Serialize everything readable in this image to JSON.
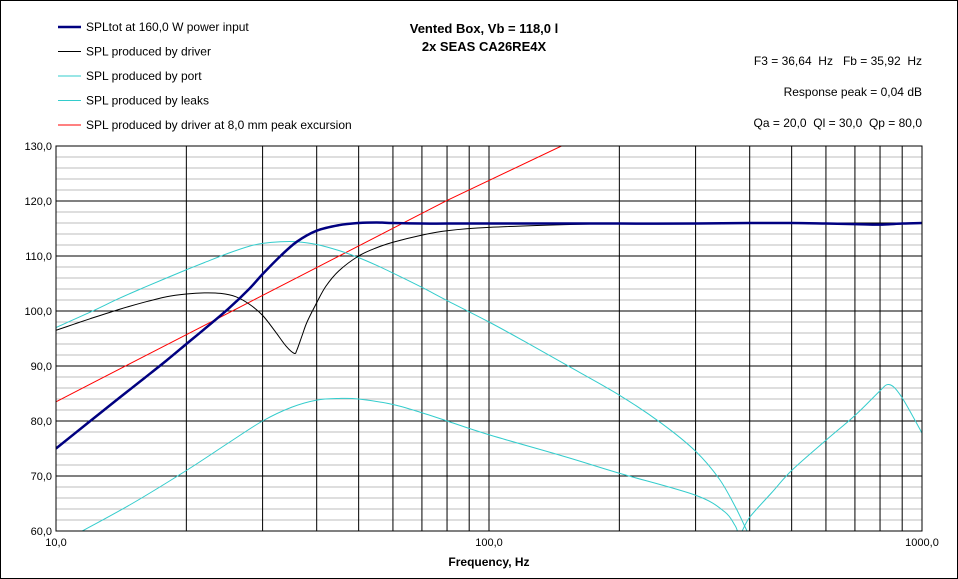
{
  "chart_data": {
    "type": "line",
    "title": "Vented Box, Vb = 118,0 l",
    "subtitle": "2x SEAS CA26RE4X",
    "xlabel": "Frequency, Hz",
    "ylabel": "",
    "x_scale": "log",
    "xlim": [
      10,
      1000
    ],
    "ylim": [
      60,
      130
    ],
    "grid": true,
    "legend_position": "top-left",
    "x_tick_labels": [
      "10,0",
      "100,0",
      "1000,0"
    ],
    "y_tick_labels": [
      "60,0",
      "70,0",
      "80,0",
      "90,0",
      "100,0",
      "110,0",
      "120,0",
      "130,0"
    ],
    "annotations": [
      "F3 = 36,64  Hz   Fb = 35,92  Hz",
      "Response peak = 0,04 dB",
      "Qa = 20,0  Ql = 30,0  Qp = 80,0"
    ],
    "series": [
      {
        "name": "SPLtot at 160,0 W power input",
        "color": "#000080",
        "x": [
          10,
          12,
          14,
          16,
          18,
          20,
          22,
          25,
          28,
          30,
          33,
          36,
          40,
          45,
          50,
          55,
          60,
          70,
          80,
          100,
          150,
          200,
          300,
          400,
          500,
          600,
          700,
          800,
          900,
          1000
        ],
        "y": [
          75.0,
          80.0,
          84.2,
          87.8,
          91.0,
          94.0,
          96.7,
          100.4,
          104.1,
          106.7,
          110.0,
          112.6,
          114.6,
          115.6,
          116.0,
          116.1,
          116.0,
          115.9,
          115.9,
          115.9,
          115.9,
          115.9,
          115.9,
          116.0,
          116.0,
          115.9,
          115.8,
          115.7,
          115.9,
          116.0
        ]
      },
      {
        "name": "SPL produced by driver",
        "color": "#000000",
        "x": [
          10,
          11,
          12,
          14,
          16,
          18,
          20,
          22,
          24,
          26,
          28,
          30,
          32,
          34,
          35.5,
          36,
          37,
          38,
          40,
          42,
          45,
          50,
          55,
          60,
          70,
          80,
          100,
          150,
          200,
          300,
          500,
          1000
        ],
        "y": [
          96.5,
          97.6,
          98.6,
          100.3,
          101.6,
          102.6,
          103.1,
          103.3,
          103.2,
          102.6,
          101.2,
          99.2,
          96.4,
          93.6,
          92.3,
          92.9,
          95.5,
          98.0,
          101.5,
          104.5,
          107.3,
          110.0,
          111.5,
          112.5,
          113.8,
          114.6,
          115.2,
          115.7,
          115.9,
          115.9,
          116.0,
          116.0
        ]
      },
      {
        "name": "SPL produced by port",
        "color": "#33CCCC",
        "x": [
          10,
          12,
          14,
          16,
          18,
          20,
          22,
          25,
          28,
          30,
          33,
          36,
          40,
          45,
          50,
          55,
          60,
          70,
          80,
          100,
          120,
          150,
          200,
          250,
          300,
          340,
          370,
          390,
          400,
          420
        ],
        "y": [
          97.0,
          99.8,
          102.3,
          104.3,
          106.0,
          107.5,
          108.8,
          110.5,
          111.8,
          112.3,
          112.6,
          112.6,
          112.1,
          111.0,
          109.7,
          108.3,
          106.9,
          104.3,
          101.9,
          98.0,
          94.6,
          90.3,
          84.7,
          79.6,
          74.5,
          69.5,
          64.5,
          60.8,
          59.0,
          56.0
        ]
      },
      {
        "name": "SPL produced by leaks",
        "color": "#33CCCC",
        "x": [
          11.5,
          15,
          20,
          25,
          30,
          35,
          40,
          45,
          50,
          60,
          70,
          80,
          100,
          150,
          200,
          300,
          350,
          370,
          380,
          400,
          450,
          500,
          600,
          700,
          800,
          830,
          860,
          900,
          950,
          1000
        ],
        "y": [
          60.0,
          65.0,
          71.0,
          76.0,
          80.0,
          82.5,
          83.8,
          84.1,
          84.0,
          83.0,
          81.5,
          80.0,
          77.5,
          73.5,
          70.5,
          66.5,
          63.5,
          61.0,
          59.5,
          62.5,
          67.0,
          71.0,
          76.5,
          81.0,
          85.5,
          86.6,
          86.2,
          84.2,
          81.0,
          77.8
        ]
      },
      {
        "name": "SPL produced by driver at 8,0 mm peak excursion",
        "color": "#FF0000",
        "x": [
          10,
          20,
          40,
          80,
          147
        ],
        "y": [
          83.5,
          95.7,
          107.9,
          120.1,
          130.0
        ]
      }
    ]
  }
}
